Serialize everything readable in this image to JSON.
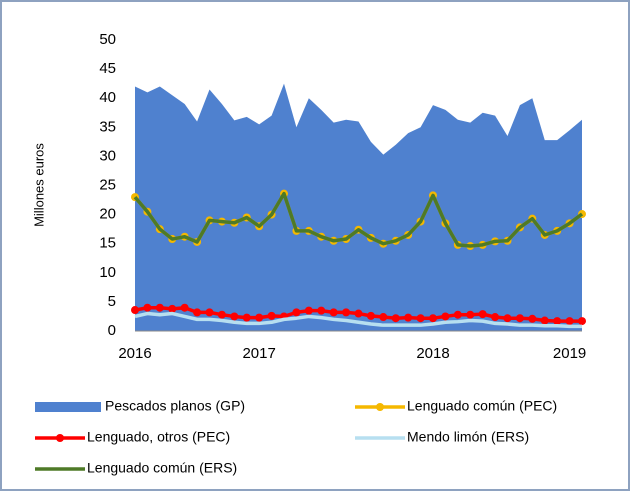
{
  "chart_data": {
    "type": "line",
    "y_label": "Millones euros",
    "categories": [
      "2016",
      null,
      null,
      null,
      null,
      null,
      null,
      null,
      null,
      null,
      "2017",
      null,
      null,
      null,
      null,
      null,
      null,
      null,
      null,
      null,
      null,
      null,
      null,
      null,
      "2018",
      null,
      null,
      null,
      null,
      null,
      null,
      null,
      null,
      null,
      null,
      "2019",
      null
    ],
    "ylim": [
      0,
      50
    ],
    "yticks": [
      0,
      5,
      10,
      15,
      20,
      25,
      30,
      35,
      40,
      45,
      50
    ],
    "grid": false,
    "legend": "bottom",
    "series": [
      {
        "name": "Pescados planos (GP)",
        "type": "area",
        "color": "#4f81cf",
        "values": [
          42,
          41,
          42,
          40.5,
          39,
          36,
          41.5,
          39,
          36.2,
          36.8,
          35.5,
          37,
          42.5,
          35,
          40,
          38,
          35.8,
          36.3,
          36,
          32.5,
          30.3,
          32,
          34,
          35,
          38.8,
          38,
          36.3,
          35.8,
          37.5,
          37,
          33.5,
          38.8,
          40,
          32.8,
          32.8,
          34.5,
          36.3
        ]
      },
      {
        "name": "Lenguado común (PEC)",
        "type": "line",
        "marker": true,
        "color": "#f5b800",
        "values": [
          23,
          20.5,
          17.5,
          15.8,
          16.2,
          15.3,
          19,
          18.8,
          18.6,
          19.5,
          18,
          20,
          23.6,
          17.2,
          17.2,
          16.2,
          15.5,
          15.8,
          17.4,
          16,
          15,
          15.5,
          16.5,
          18.8,
          23.3,
          18.5,
          14.8,
          14.6,
          14.8,
          15.4,
          15.5,
          17.8,
          19.3,
          16.5,
          17.2,
          18.5,
          20.1
        ]
      },
      {
        "name": "Lenguado, otros (PEC)",
        "type": "line",
        "marker": true,
        "color": "#ff0000",
        "values": [
          3.6,
          4,
          4,
          3.8,
          4,
          3.2,
          3.2,
          2.8,
          2.5,
          2.3,
          2.3,
          2.6,
          2.5,
          3.2,
          3.5,
          3.5,
          3.2,
          3.2,
          3,
          2.6,
          2.4,
          2.2,
          2.3,
          2.2,
          2.2,
          2.5,
          2.8,
          2.8,
          2.9,
          2.4,
          2.2,
          2.2,
          2.1,
          1.8,
          1.7,
          1.7,
          1.7
        ]
      },
      {
        "name": "Mendo limón (ERS)",
        "type": "line",
        "marker": false,
        "color": "#b7dff0",
        "values": [
          2.5,
          3,
          2.8,
          3,
          2.5,
          2,
          2,
          1.8,
          1.5,
          1.3,
          1.3,
          1.5,
          2,
          2.2,
          2.5,
          2.3,
          2,
          1.8,
          1.5,
          1.2,
          1,
          1,
          1,
          1,
          1.2,
          1.5,
          1.6,
          1.8,
          1.7,
          1.3,
          1.2,
          1,
          1,
          0.9,
          0.9,
          0.8,
          0.8
        ]
      },
      {
        "name": "Lenguado común (ERS)",
        "type": "line",
        "marker": false,
        "color": "#4e7a27",
        "values": [
          23,
          20.5,
          17.5,
          15.8,
          16.2,
          15.3,
          19,
          18.8,
          18.6,
          19.5,
          18,
          20,
          23.6,
          17.2,
          17.2,
          16.2,
          15.5,
          15.8,
          17.4,
          16,
          15,
          15.5,
          16.5,
          18.8,
          23.3,
          18.5,
          14.8,
          14.6,
          14.8,
          15.4,
          15.5,
          17.8,
          19.3,
          16.5,
          17.2,
          18.5,
          20.1
        ]
      }
    ]
  }
}
